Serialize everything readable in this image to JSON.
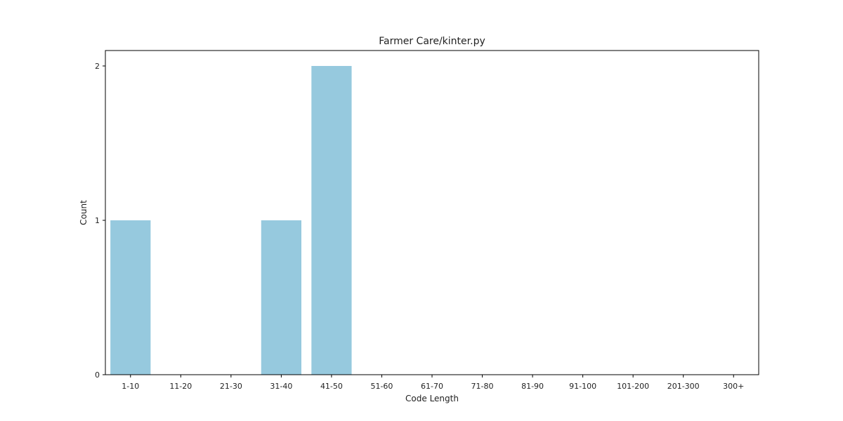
{
  "chart_data": {
    "type": "bar",
    "title": "Farmer Care/kinter.py",
    "xlabel": "Code Length",
    "ylabel": "Count",
    "categories": [
      "1-10",
      "11-20",
      "21-30",
      "31-40",
      "41-50",
      "51-60",
      "61-70",
      "71-80",
      "81-90",
      "91-100",
      "101-200",
      "201-300",
      "300+"
    ],
    "values": [
      1,
      0,
      0,
      1,
      2,
      0,
      0,
      0,
      0,
      0,
      0,
      0,
      0
    ],
    "ylim": [
      0,
      2.1
    ],
    "yticks": [
      0,
      1,
      2
    ],
    "bar_color": "#96c9de",
    "grid": false
  }
}
